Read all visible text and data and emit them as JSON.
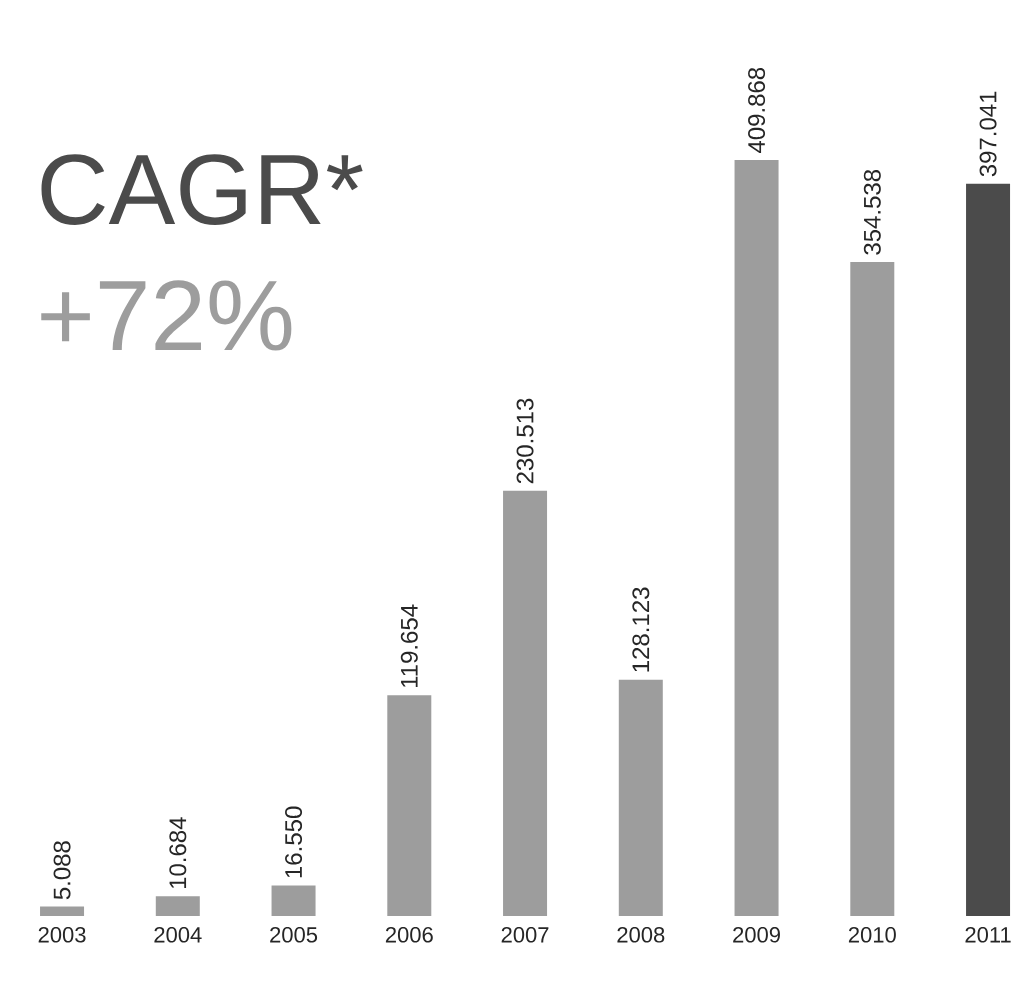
{
  "chart_data": {
    "type": "bar",
    "categories": [
      "2003",
      "2004",
      "2005",
      "2006",
      "2007",
      "2008",
      "2009",
      "2010",
      "2011"
    ],
    "values": [
      5.088,
      10.684,
      16.55,
      119.654,
      230.513,
      128.123,
      409.868,
      354.538,
      397.041
    ],
    "value_labels": [
      "5.088",
      "10.684",
      "16.550",
      "119.654",
      "230.513",
      "128.123",
      "409.868",
      "354.538",
      "397.041"
    ],
    "colors": [
      "#9d9d9d",
      "#9d9d9d",
      "#9d9d9d",
      "#9d9d9d",
      "#9d9d9d",
      "#9d9d9d",
      "#9d9d9d",
      "#9d9d9d",
      "#4b4b4b"
    ],
    "annotations": [
      "CAGR*",
      "+72%"
    ]
  }
}
